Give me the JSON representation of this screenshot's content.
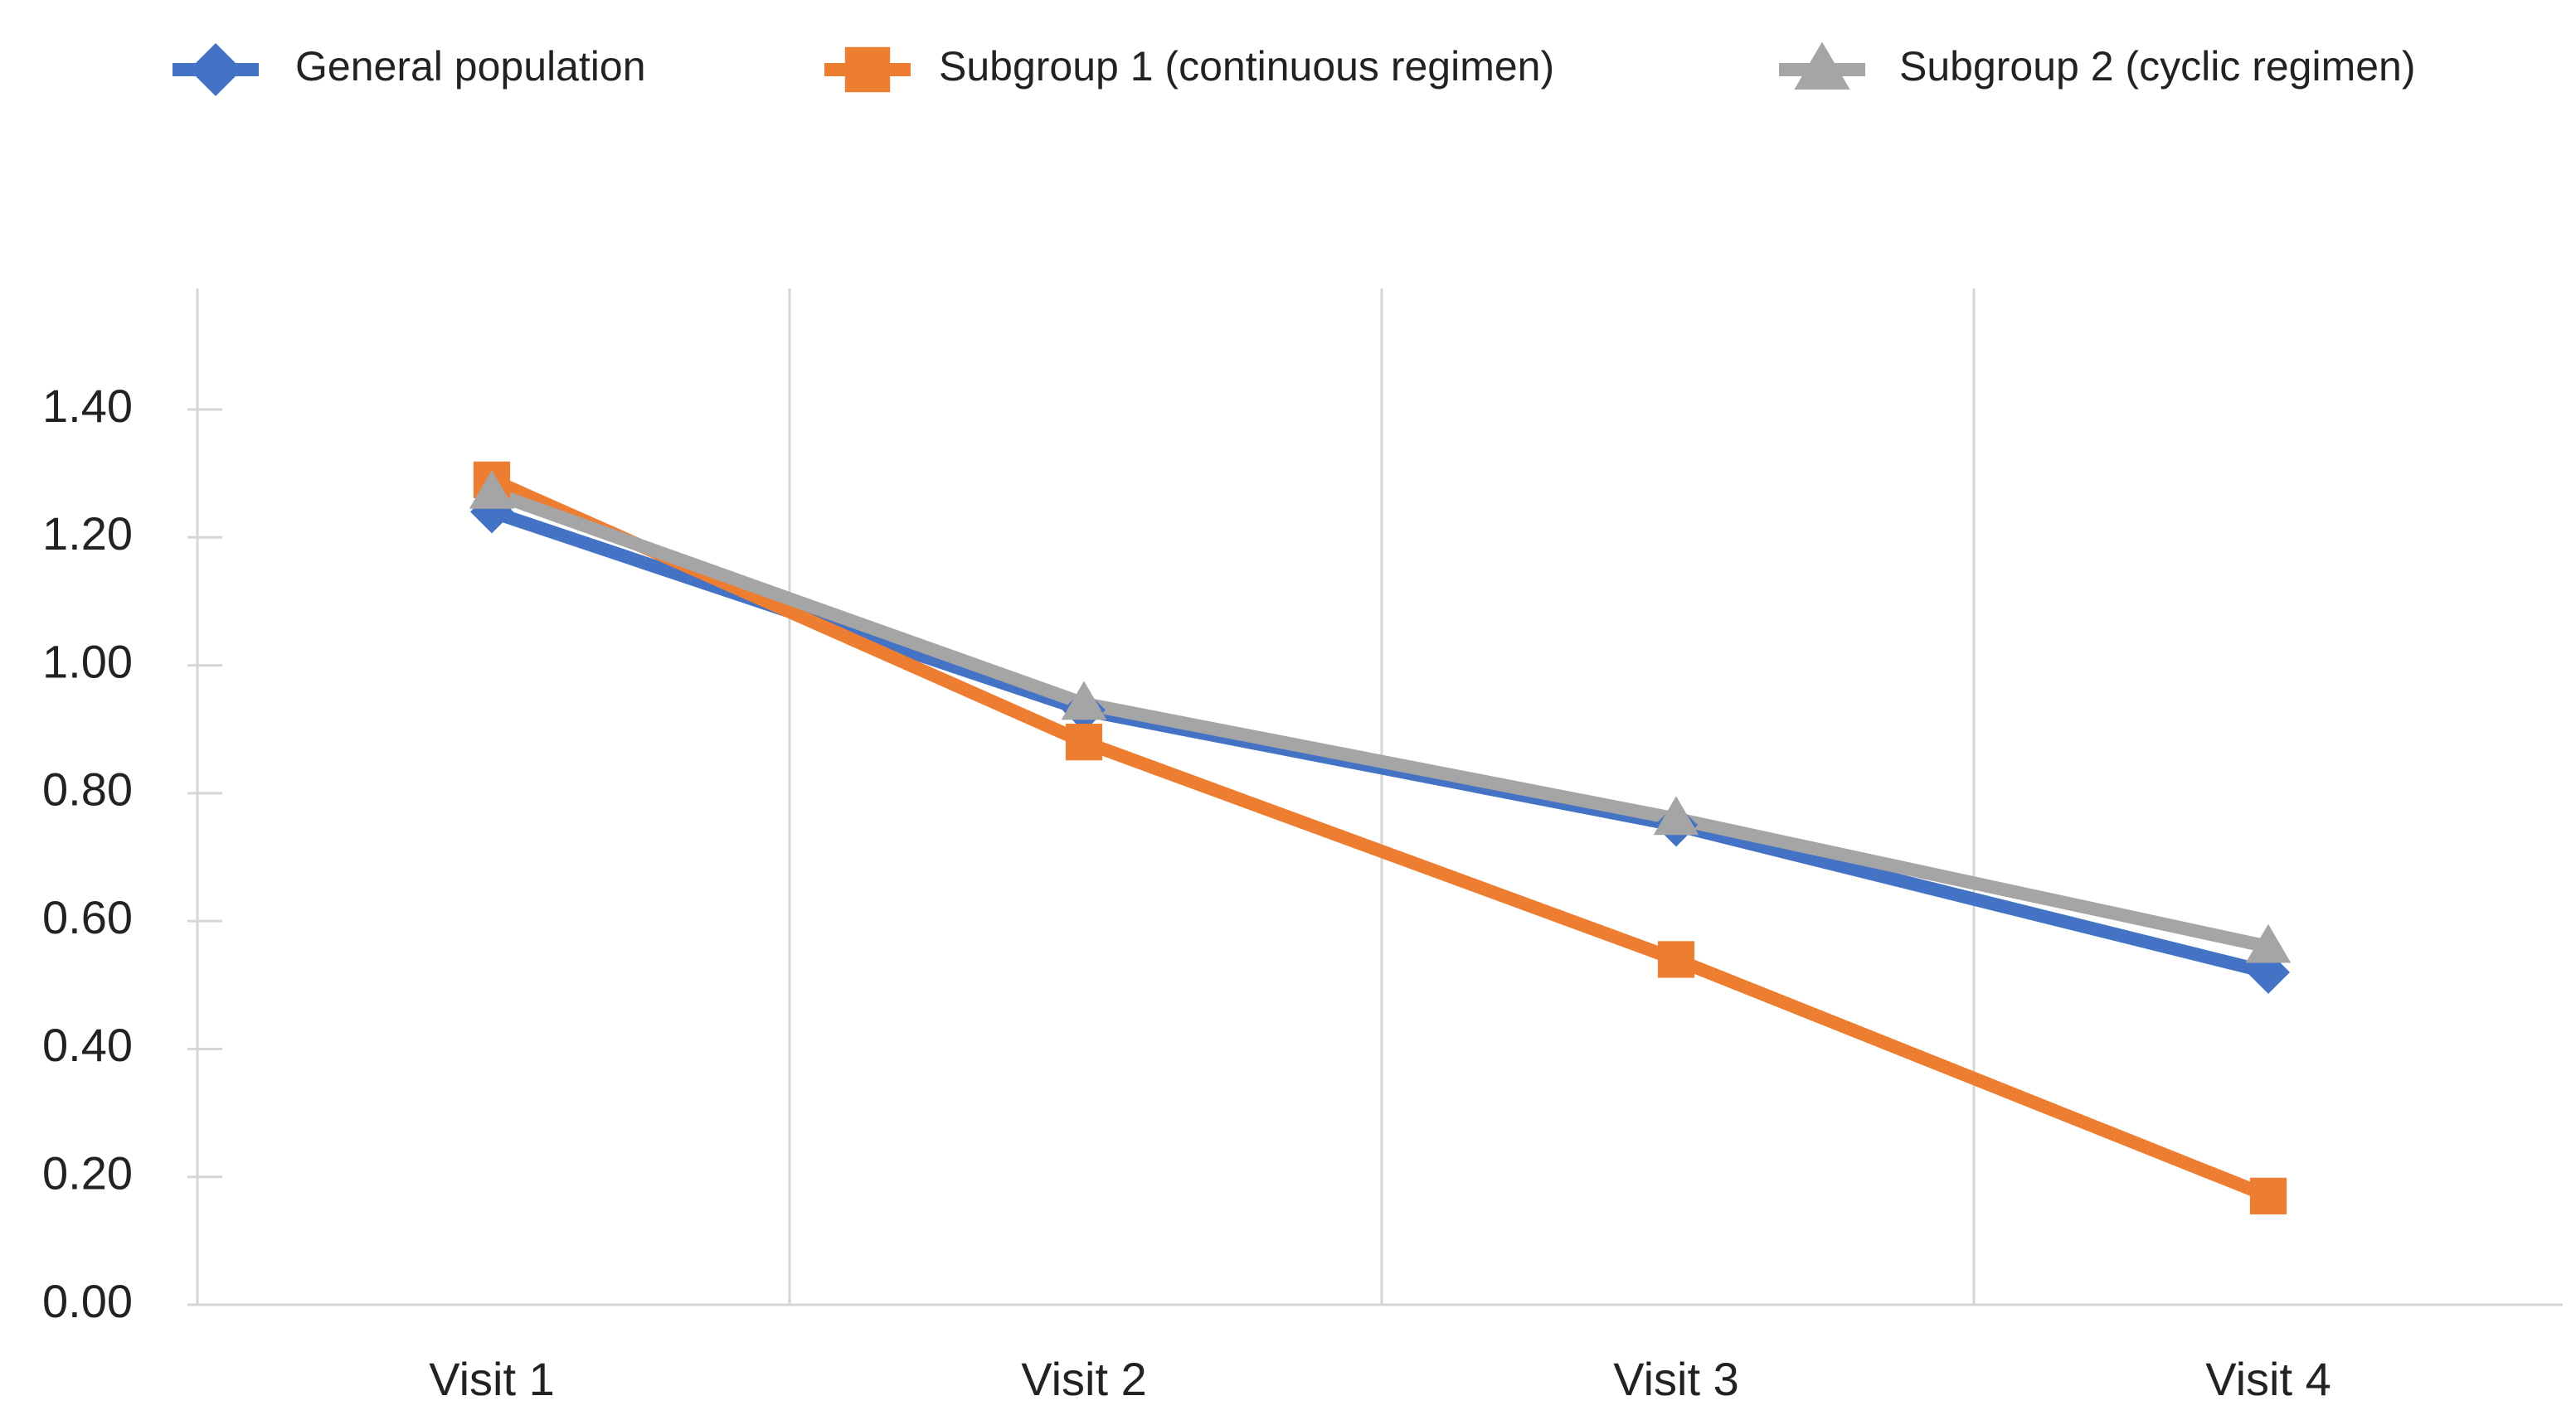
{
  "chart_data": {
    "type": "line",
    "categories": [
      "Visit 1",
      "Visit 2",
      "Visit 3",
      "Visit 4"
    ],
    "y_ticks": [
      "0.00",
      "0.20",
      "0.40",
      "0.60",
      "0.80",
      "1.00",
      "1.20",
      "1.40"
    ],
    "ylim": [
      0,
      1.4
    ],
    "grid": "vertical",
    "legend_position": "top",
    "series": [
      {
        "name": "General population",
        "values": [
          1.24,
          0.93,
          0.75,
          0.52
        ],
        "color": "#4472C4",
        "marker": "diamond"
      },
      {
        "name": "Subgroup 1 (continuous regimen)",
        "values": [
          1.29,
          0.88,
          0.54,
          0.17
        ],
        "color": "#ED7D31",
        "marker": "square"
      },
      {
        "name": "Subgroup 2 (cyclic regimen)",
        "values": [
          1.27,
          0.94,
          0.76,
          0.56
        ],
        "color": "#A5A5A5",
        "marker": "triangle"
      }
    ]
  }
}
